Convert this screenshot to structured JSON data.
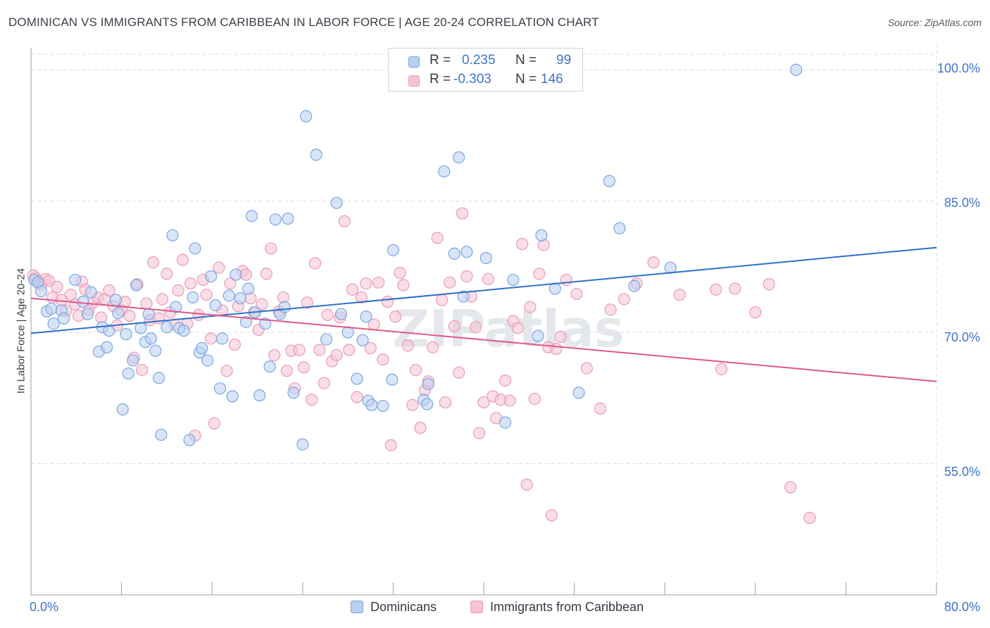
{
  "header": {
    "title": "DOMINICAN VS IMMIGRANTS FROM CARIBBEAN IN LABOR FORCE | AGE 20-24 CORRELATION CHART",
    "source": "Source: ZipAtlas.com"
  },
  "watermark": "ZIPatlas",
  "legend": {
    "r_label": "R =",
    "n_label": "N =",
    "rows": [
      {
        "r": "0.235",
        "n": "99"
      },
      {
        "r": "-0.303",
        "n": "146"
      }
    ]
  },
  "bottom_legend": [
    "Dominicans",
    "Immigrants from Caribbean"
  ],
  "colors": {
    "blue_fill": "#b8d0f2",
    "blue_stroke": "#7aa6e0",
    "blue_line": "#2f6fcc",
    "pink_fill": "#f6c3d3",
    "pink_stroke": "#eb9ab6",
    "pink_line": "#e0578c",
    "axis_text": "#3e73c9",
    "grid": "#d8dce2"
  },
  "chart_data": {
    "type": "scatter",
    "title": "DOMINICAN VS IMMIGRANTS FROM CARIBBEAN IN LABOR FORCE | AGE 20-24 CORRELATION CHART",
    "xlabel": "",
    "ylabel": "In Labor Force | Age 20-24",
    "xlim": [
      0,
      80
    ],
    "ylim": [
      40,
      103
    ],
    "x_tick_labels": [
      "0.0%",
      "80.0%"
    ],
    "y_ticks": [
      55,
      70,
      85,
      100
    ],
    "y_tick_labels": [
      "55.0%",
      "70.0%",
      "85.0%",
      "100.0%"
    ],
    "grid": true,
    "legend_position": "top-center",
    "series": [
      {
        "name": "Dominicans",
        "R": 0.235,
        "N": 99,
        "trend": [
          [
            0,
            69.9
          ],
          [
            80,
            79.7
          ]
        ],
        "points": [
          [
            0.3,
            76.0
          ],
          [
            0.6,
            75.7
          ],
          [
            0.9,
            74.7
          ],
          [
            1.4,
            72.4
          ],
          [
            1.8,
            72.7
          ],
          [
            2.0,
            71.0
          ],
          [
            2.7,
            72.5
          ],
          [
            2.9,
            71.6
          ],
          [
            3.9,
            76.0
          ],
          [
            4.6,
            73.5
          ],
          [
            5.0,
            72.1
          ],
          [
            5.3,
            74.6
          ],
          [
            6.0,
            67.8
          ],
          [
            6.3,
            70.6
          ],
          [
            6.7,
            68.3
          ],
          [
            6.9,
            70.2
          ],
          [
            7.5,
            73.7
          ],
          [
            7.7,
            72.2
          ],
          [
            8.1,
            61.2
          ],
          [
            8.4,
            69.8
          ],
          [
            8.6,
            65.3
          ],
          [
            9.0,
            66.8
          ],
          [
            9.3,
            75.4
          ],
          [
            9.7,
            70.5
          ],
          [
            10.1,
            68.9
          ],
          [
            10.4,
            72.1
          ],
          [
            10.6,
            69.3
          ],
          [
            11.0,
            67.9
          ],
          [
            11.3,
            64.8
          ],
          [
            11.5,
            58.3
          ],
          [
            12.0,
            70.6
          ],
          [
            12.5,
            81.1
          ],
          [
            12.8,
            72.9
          ],
          [
            13.1,
            70.5
          ],
          [
            13.5,
            70.2
          ],
          [
            14.0,
            57.7
          ],
          [
            14.3,
            74.0
          ],
          [
            14.5,
            79.6
          ],
          [
            14.9,
            67.7
          ],
          [
            15.1,
            68.2
          ],
          [
            15.6,
            66.8
          ],
          [
            15.9,
            76.4
          ],
          [
            16.3,
            73.1
          ],
          [
            16.7,
            63.6
          ],
          [
            16.9,
            69.3
          ],
          [
            17.5,
            74.2
          ],
          [
            17.8,
            62.7
          ],
          [
            18.1,
            76.6
          ],
          [
            18.5,
            73.9
          ],
          [
            19.0,
            71.2
          ],
          [
            19.2,
            75.0
          ],
          [
            19.5,
            83.3
          ],
          [
            19.8,
            72.3
          ],
          [
            20.2,
            62.8
          ],
          [
            20.7,
            71.0
          ],
          [
            21.1,
            66.1
          ],
          [
            21.6,
            82.9
          ],
          [
            22.0,
            72.1
          ],
          [
            22.4,
            72.9
          ],
          [
            22.7,
            83.0
          ],
          [
            23.2,
            63.1
          ],
          [
            24.0,
            57.2
          ],
          [
            24.3,
            94.7
          ],
          [
            25.2,
            90.3
          ],
          [
            26.1,
            69.2
          ],
          [
            27.0,
            84.8
          ],
          [
            27.4,
            72.1
          ],
          [
            28.0,
            70.0
          ],
          [
            28.8,
            64.7
          ],
          [
            29.3,
            69.1
          ],
          [
            29.6,
            71.8
          ],
          [
            29.8,
            62.2
          ],
          [
            30.1,
            61.7
          ],
          [
            31.1,
            61.6
          ],
          [
            31.9,
            64.6
          ],
          [
            32.0,
            79.4
          ],
          [
            34.7,
            62.3
          ],
          [
            35.0,
            61.8
          ],
          [
            35.1,
            64.1
          ],
          [
            36.5,
            88.4
          ],
          [
            37.4,
            79.0
          ],
          [
            37.8,
            90.0
          ],
          [
            38.2,
            74.1
          ],
          [
            38.5,
            79.2
          ],
          [
            40.2,
            78.5
          ],
          [
            41.9,
            59.7
          ],
          [
            42.6,
            76.0
          ],
          [
            44.8,
            69.6
          ],
          [
            45.1,
            81.1
          ],
          [
            46.3,
            75.0
          ],
          [
            48.4,
            63.1
          ],
          [
            51.1,
            87.3
          ],
          [
            52.0,
            81.9
          ],
          [
            53.3,
            75.3
          ],
          [
            56.5,
            77.4
          ],
          [
            67.6,
            100.0
          ]
        ]
      },
      {
        "name": "Immigrants from Caribbean",
        "R": -0.303,
        "N": 146,
        "trend": [
          [
            0,
            73.9
          ],
          [
            80,
            64.4
          ]
        ],
        "points": [
          [
            0.2,
            76.5
          ],
          [
            0.4,
            76.2
          ],
          [
            0.7,
            75.8
          ],
          [
            0.9,
            75.5
          ],
          [
            1.3,
            76.1
          ],
          [
            1.6,
            75.9
          ],
          [
            1.9,
            74.0
          ],
          [
            2.3,
            75.2
          ],
          [
            2.7,
            73.7
          ],
          [
            3.1,
            72.5
          ],
          [
            3.5,
            74.3
          ],
          [
            3.9,
            73.2
          ],
          [
            4.2,
            71.9
          ],
          [
            4.5,
            75.8
          ],
          [
            4.8,
            74.9
          ],
          [
            5.1,
            72.6
          ],
          [
            5.5,
            73.4
          ],
          [
            5.9,
            74.0
          ],
          [
            6.2,
            71.7
          ],
          [
            6.5,
            73.8
          ],
          [
            6.9,
            74.8
          ],
          [
            7.3,
            73.0
          ],
          [
            7.6,
            70.8
          ],
          [
            8.0,
            72.5
          ],
          [
            8.3,
            73.5
          ],
          [
            8.7,
            71.9
          ],
          [
            9.1,
            67.1
          ],
          [
            9.4,
            75.5
          ],
          [
            9.8,
            65.7
          ],
          [
            10.2,
            73.3
          ],
          [
            10.5,
            71.4
          ],
          [
            10.8,
            78.0
          ],
          [
            11.3,
            71.6
          ],
          [
            11.6,
            73.8
          ],
          [
            12.0,
            76.7
          ],
          [
            12.3,
            72.3
          ],
          [
            12.7,
            70.9
          ],
          [
            13.0,
            74.8
          ],
          [
            13.4,
            78.3
          ],
          [
            13.8,
            71.0
          ],
          [
            14.1,
            75.6
          ],
          [
            14.5,
            58.2
          ],
          [
            14.8,
            72.0
          ],
          [
            15.2,
            76.0
          ],
          [
            15.5,
            74.3
          ],
          [
            15.9,
            69.3
          ],
          [
            16.2,
            59.6
          ],
          [
            16.6,
            77.4
          ],
          [
            16.9,
            72.5
          ],
          [
            17.3,
            65.6
          ],
          [
            17.6,
            75.6
          ],
          [
            18.0,
            68.6
          ],
          [
            18.3,
            73.0
          ],
          [
            18.7,
            77.0
          ],
          [
            19.0,
            76.6
          ],
          [
            19.4,
            73.9
          ],
          [
            19.7,
            72.3
          ],
          [
            20.1,
            70.3
          ],
          [
            20.4,
            73.2
          ],
          [
            20.8,
            76.7
          ],
          [
            21.2,
            79.6
          ],
          [
            21.5,
            67.4
          ],
          [
            21.9,
            72.4
          ],
          [
            22.3,
            74.0
          ],
          [
            22.6,
            65.6
          ],
          [
            23.0,
            67.9
          ],
          [
            23.3,
            63.6
          ],
          [
            23.7,
            68.0
          ],
          [
            24.1,
            66.0
          ],
          [
            24.4,
            73.4
          ],
          [
            24.8,
            62.3
          ],
          [
            25.1,
            77.9
          ],
          [
            25.5,
            68.0
          ],
          [
            25.9,
            64.2
          ],
          [
            26.2,
            72.0
          ],
          [
            26.6,
            66.7
          ],
          [
            27.0,
            67.4
          ],
          [
            27.3,
            71.7
          ],
          [
            27.7,
            82.7
          ],
          [
            28.1,
            68.0
          ],
          [
            28.4,
            74.9
          ],
          [
            28.8,
            62.6
          ],
          [
            29.2,
            74.0
          ],
          [
            29.6,
            75.6
          ],
          [
            30.0,
            68.2
          ],
          [
            30.3,
            70.9
          ],
          [
            30.7,
            75.7
          ],
          [
            31.1,
            66.9
          ],
          [
            31.5,
            73.5
          ],
          [
            31.8,
            57.1
          ],
          [
            32.2,
            71.8
          ],
          [
            32.6,
            76.8
          ],
          [
            32.9,
            75.4
          ],
          [
            33.3,
            68.5
          ],
          [
            33.7,
            61.7
          ],
          [
            34.0,
            65.7
          ],
          [
            34.4,
            59.1
          ],
          [
            34.8,
            63.4
          ],
          [
            35.1,
            64.4
          ],
          [
            35.5,
            68.3
          ],
          [
            35.9,
            80.8
          ],
          [
            36.3,
            73.7
          ],
          [
            36.6,
            62.0
          ],
          [
            37.0,
            75.7
          ],
          [
            37.4,
            70.7
          ],
          [
            37.8,
            65.4
          ],
          [
            38.1,
            83.6
          ],
          [
            38.5,
            76.4
          ],
          [
            38.9,
            74.1
          ],
          [
            39.3,
            70.6
          ],
          [
            39.6,
            58.5
          ],
          [
            40.0,
            62.0
          ],
          [
            40.4,
            76.1
          ],
          [
            40.8,
            62.7
          ],
          [
            41.1,
            60.2
          ],
          [
            41.5,
            62.3
          ],
          [
            41.9,
            64.5
          ],
          [
            42.3,
            62.2
          ],
          [
            42.6,
            71.3
          ],
          [
            43.0,
            70.5
          ],
          [
            43.4,
            80.1
          ],
          [
            43.8,
            52.6
          ],
          [
            44.1,
            72.9
          ],
          [
            44.5,
            62.4
          ],
          [
            44.9,
            76.7
          ],
          [
            45.3,
            80.0
          ],
          [
            45.7,
            68.3
          ],
          [
            46.0,
            49.1
          ],
          [
            46.4,
            68.1
          ],
          [
            46.8,
            69.5
          ],
          [
            47.3,
            76.0
          ],
          [
            48.2,
            74.4
          ],
          [
            49.1,
            65.9
          ],
          [
            50.3,
            61.3
          ],
          [
            51.2,
            72.6
          ],
          [
            52.4,
            73.8
          ],
          [
            53.5,
            75.6
          ],
          [
            55.0,
            78.0
          ],
          [
            57.3,
            74.3
          ],
          [
            60.5,
            74.9
          ],
          [
            61.0,
            65.8
          ],
          [
            62.2,
            75.0
          ],
          [
            64.0,
            72.3
          ],
          [
            65.2,
            75.5
          ],
          [
            67.1,
            52.3
          ],
          [
            68.8,
            48.8
          ]
        ]
      }
    ]
  }
}
